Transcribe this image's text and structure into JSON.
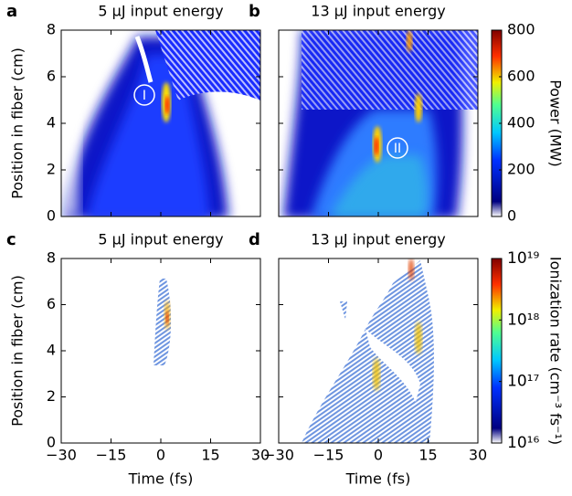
{
  "chart_data": [
    {
      "type": "heatmap",
      "panel": "a",
      "title": "5 μJ input energy",
      "ylabel": "Position in fiber (cm)",
      "annotation": "I",
      "xlim": [
        -30,
        30
      ],
      "xticks": [
        -30,
        -15,
        0,
        15,
        30
      ],
      "ylim": [
        0,
        8
      ],
      "yticks": [
        0,
        2,
        4,
        6,
        8
      ]
    },
    {
      "type": "heatmap",
      "panel": "b",
      "title": "13 μJ input energy",
      "annotation": "II",
      "xlim": [
        -30,
        30
      ],
      "xticks": [
        -30,
        -15,
        0,
        15,
        30
      ],
      "ylim": [
        0,
        8
      ],
      "yticks": [
        0,
        2,
        4,
        6,
        8
      ],
      "colorbar": {
        "label": "Power (MW)",
        "lim": [
          0,
          800
        ],
        "ticks": [
          0,
          200,
          400,
          600,
          800
        ]
      }
    },
    {
      "type": "heatmap",
      "panel": "c",
      "title": "5 μJ input energy",
      "xlabel": "Time (fs)",
      "ylabel": "Position in fiber (cm)",
      "xlim": [
        -30,
        30
      ],
      "xticks": [
        {
          "value": -30,
          "label": "−30"
        },
        {
          "value": -15,
          "label": "−15"
        },
        0,
        15,
        30
      ],
      "ylim": [
        0,
        8
      ],
      "yticks": [
        0,
        2,
        4,
        6,
        8
      ]
    },
    {
      "type": "heatmap",
      "panel": "d",
      "title": "13 μJ input energy",
      "xlabel": "Time (fs)",
      "xlim": [
        -30,
        30
      ],
      "xticks": [
        {
          "value": -30,
          "label": "−30"
        },
        {
          "value": -15,
          "label": "−15"
        },
        0,
        15,
        30
      ],
      "ylim": [
        0,
        8
      ],
      "yticks": [
        0,
        2,
        4,
        6,
        8
      ],
      "colorbar": {
        "label": "Ionization rate (cm⁻³ fs⁻¹)",
        "log": true,
        "lim": [
          1e+16,
          1e+19
        ],
        "ticks": [
          {
            "value": 1e+16,
            "label": "10¹⁶"
          },
          {
            "value": 1e+17,
            "label": "10¹⁷"
          },
          {
            "value": 1e+18,
            "label": "10¹⁸"
          },
          {
            "value": 1e+19,
            "label": "10¹⁹"
          }
        ]
      }
    }
  ]
}
